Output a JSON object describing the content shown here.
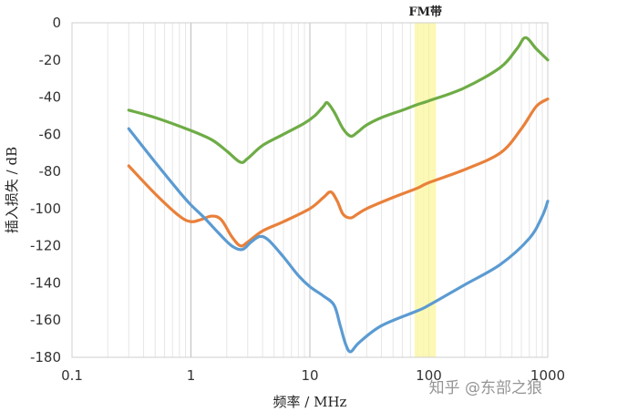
{
  "chart_data": {
    "type": "line",
    "title": "",
    "xlabel": "频率 / MHz",
    "ylabel": "插入损失 / dB",
    "xscale": "log",
    "xlim": [
      0.1,
      1000
    ],
    "ylim": [
      -180,
      0
    ],
    "x_ticks": [
      0.1,
      1,
      10,
      100,
      1000
    ],
    "x_tick_labels": [
      "0.1",
      "1",
      "10",
      "100",
      "1000"
    ],
    "y_ticks": [
      0,
      -20,
      -40,
      -60,
      -80,
      -100,
      -120,
      -140,
      -160,
      -180
    ],
    "y_tick_labels": [
      "0",
      "-20",
      "-40",
      "-60",
      "-80",
      "-100",
      "-120",
      "-140",
      "-160",
      "-180"
    ],
    "grid": "vertical major + minor (log decades)",
    "legend": "none",
    "band": {
      "label": "FM带",
      "x_range": [
        76,
        115
      ],
      "color": "#fbf7a8"
    },
    "series": [
      {
        "color": "#6eac46",
        "x": [
          0.3,
          0.5,
          1,
          1.5,
          2,
          2.6,
          3,
          4,
          6,
          9,
          11,
          13,
          14,
          16,
          19,
          22,
          25,
          30,
          40,
          60,
          80,
          100,
          200,
          400,
          550,
          650,
          800,
          1000
        ],
        "y": [
          -47,
          -51,
          -58,
          -63,
          -69,
          -75,
          -73,
          -66,
          -60,
          -54,
          -50,
          -45,
          -43,
          -48,
          -57,
          -61,
          -59,
          -55,
          -51,
          -47,
          -44,
          -42,
          -35,
          -24,
          -14,
          -8,
          -14,
          -20
        ]
      },
      {
        "color": "#e9803a",
        "x": [
          0.3,
          0.5,
          0.8,
          1,
          1.2,
          1.5,
          1.8,
          2.2,
          2.6,
          3,
          4,
          6,
          10,
          13,
          15,
          17,
          19,
          22,
          25,
          30,
          50,
          80,
          100,
          200,
          400,
          600,
          800,
          1000
        ],
        "y": [
          -77,
          -92,
          -104,
          -107,
          -106,
          -104,
          -106,
          -115,
          -120,
          -118,
          -112,
          -107,
          -100,
          -94,
          -91,
          -96,
          -103,
          -105,
          -103,
          -100,
          -94,
          -89,
          -86,
          -79,
          -70,
          -57,
          -45,
          -41
        ]
      },
      {
        "color": "#5b9bd2",
        "x": [
          0.3,
          0.5,
          0.8,
          1,
          1.3,
          1.7,
          2.2,
          2.7,
          3.2,
          3.8,
          4.5,
          6,
          8,
          10,
          13,
          16,
          18,
          20,
          22,
          26,
          40,
          80,
          100,
          200,
          400,
          700,
          900,
          1000
        ],
        "y": [
          -57,
          -75,
          -91,
          -98,
          -105,
          -113,
          -120,
          -122,
          -118,
          -115,
          -117,
          -126,
          -136,
          -142,
          -147,
          -152,
          -163,
          -173,
          -177,
          -172,
          -163,
          -155,
          -152,
          -141,
          -130,
          -116,
          -104,
          -96
        ]
      }
    ]
  },
  "watermark": "知乎 @东部之狼"
}
